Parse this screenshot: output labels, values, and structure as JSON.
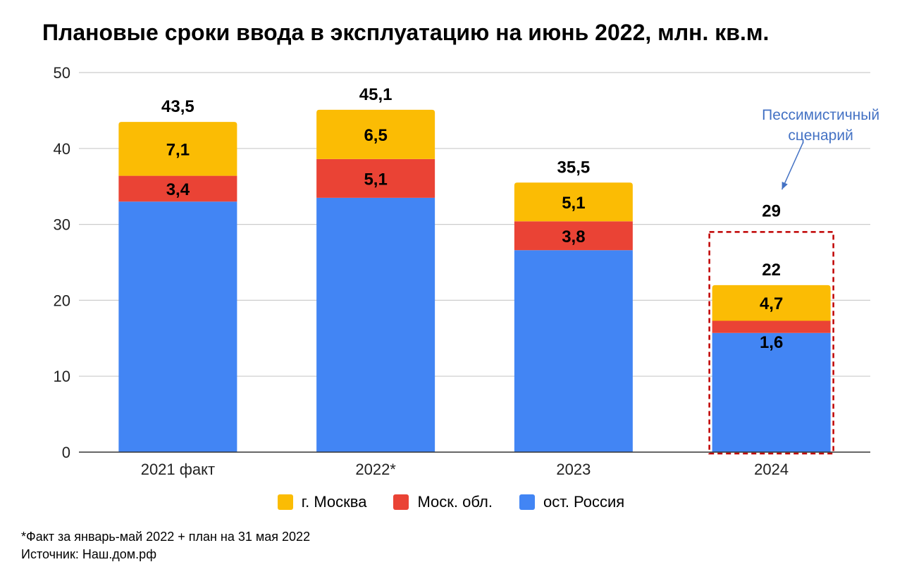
{
  "title": "Плановые сроки ввода в эксплуатацию на июнь 2022, млн. кв.м.",
  "chart_data": {
    "type": "bar",
    "stacked": true,
    "categories": [
      "2021 факт",
      "2022*",
      "2023",
      "2024"
    ],
    "series": [
      {
        "name": "ост. Россия",
        "color": "#4285f4",
        "values": [
          33.0,
          33.5,
          26.6,
          15.7
        ]
      },
      {
        "name": "Моск. обл.",
        "color": "#ea4335",
        "values": [
          3.4,
          5.1,
          3.8,
          1.6
        ]
      },
      {
        "name": "г. Москва",
        "color": "#fbbc04",
        "values": [
          7.1,
          6.5,
          5.1,
          4.7
        ]
      }
    ],
    "segment_labels": [
      {
        "series": "Моск. обл.",
        "labels": [
          "3,4",
          "5,1",
          "3,8",
          "1,6"
        ]
      },
      {
        "series": "г. Москва",
        "labels": [
          "7,1",
          "6,5",
          "5,1",
          "4,7"
        ]
      }
    ],
    "totals": [
      "43,5",
      "45,1",
      "35,5",
      "22"
    ],
    "ylim": [
      0,
      50
    ],
    "yticks": [
      0,
      10,
      20,
      30,
      40,
      50
    ],
    "grid": true,
    "legend_position": "bottom",
    "annotation": {
      "text_lines": [
        "Пессимистичный",
        "сценарий"
      ],
      "color": "#4472c4",
      "target_category": "2024",
      "target_value": 29,
      "target_label": "29"
    }
  },
  "legend": [
    {
      "label": "г. Москва",
      "color": "#fbbc04"
    },
    {
      "label": "Моск. обл.",
      "color": "#ea4335"
    },
    {
      "label": "ост. Россия",
      "color": "#4285f4"
    }
  ],
  "footnote": {
    "line1": "*Факт за январь-май 2022 + план на 31 мая 2022",
    "line2": "Источник: Наш.дом.рф"
  }
}
